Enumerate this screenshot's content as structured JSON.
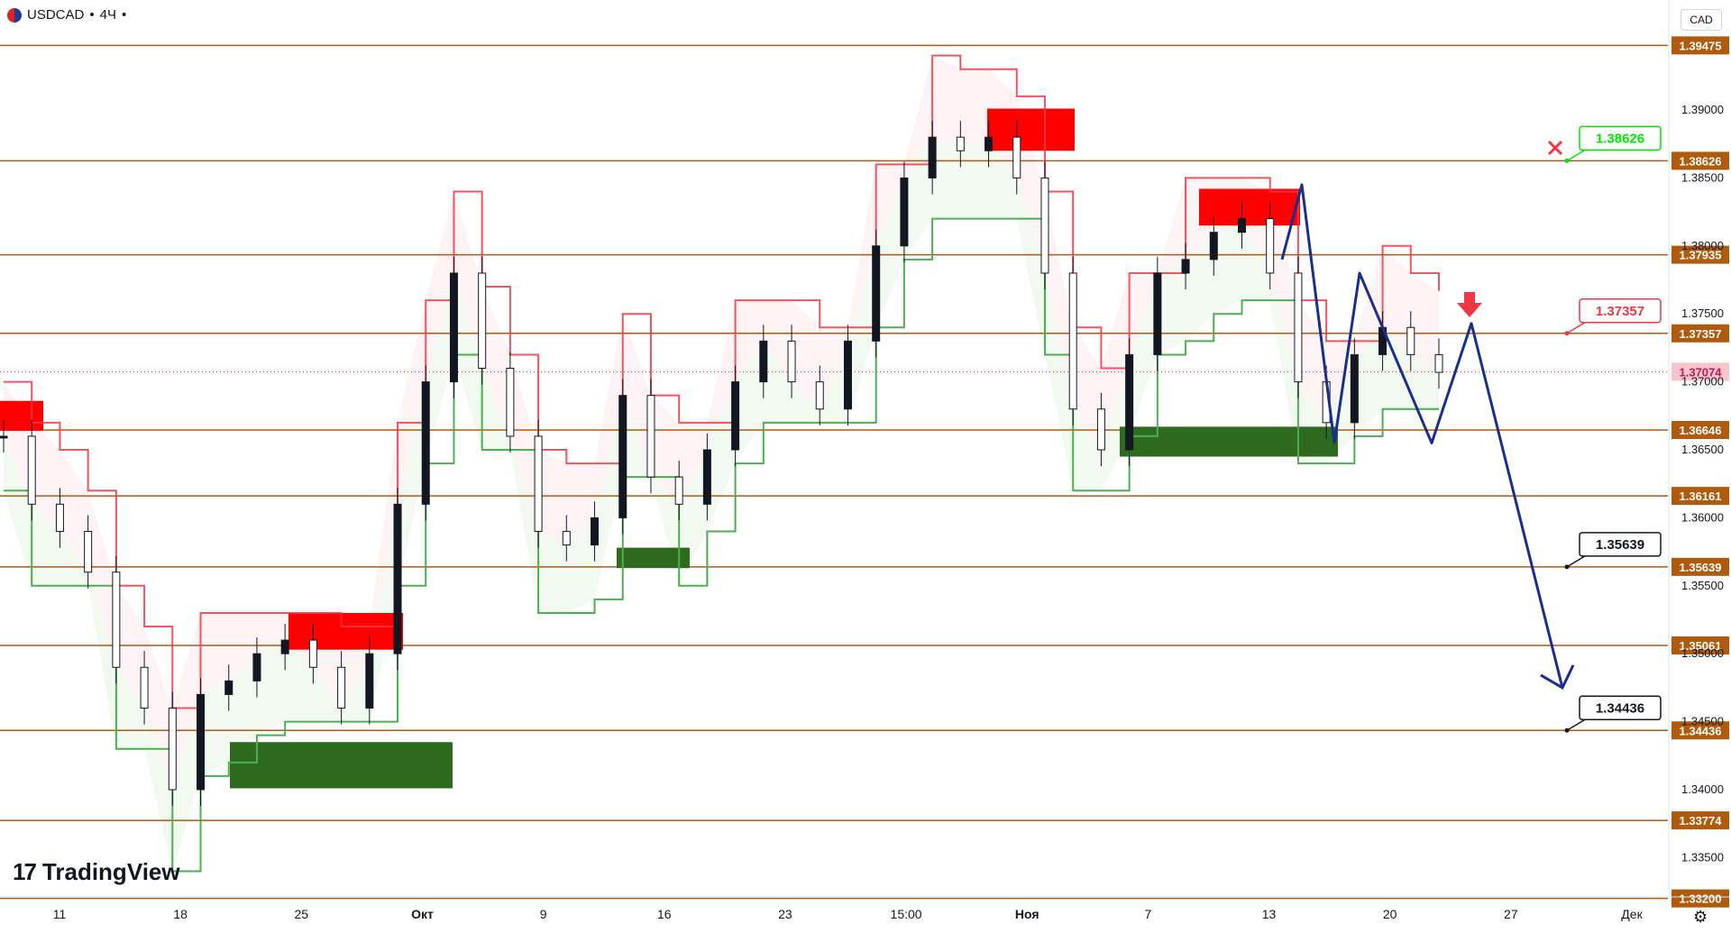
{
  "header": {
    "symbol": "USDCAD",
    "interval": "4Ч",
    "separator": "•"
  },
  "currency_label": "CAD",
  "branding": {
    "logo_text": "TradingView"
  },
  "icons": {
    "flag": "us-ca-flag-icon",
    "settings": "gear-icon",
    "cancel": "x-mark-icon",
    "sell": "arrow-down-icon"
  },
  "colors": {
    "level_line": "#b05a0e",
    "supply_zone": "#ff0000",
    "demand_zone": "#2e6b1f",
    "support_line": "#4caf50",
    "resistance_line": "#f23645",
    "projection": "#1a2f8c",
    "target_green": "#00e600",
    "target_red": "#f23645"
  },
  "chart_data": {
    "type": "line",
    "title": "",
    "ylim": [
      1.3315,
      1.3975
    ],
    "y_ticks": [
      "1.39000",
      "1.38500",
      "1.38000",
      "1.37500",
      "1.37000",
      "1.36500",
      "1.36000",
      "1.35500",
      "1.35000",
      "1.34500",
      "1.34000",
      "1.33500"
    ],
    "x_ticks": [
      "11",
      "18",
      "25",
      "Окт",
      "9",
      "16",
      "23",
      "15:00",
      "Ноя",
      "7",
      "13",
      "20",
      "27",
      "Дек"
    ],
    "levels": [
      "1.39475",
      "1.38626",
      "1.37935",
      "1.37357",
      "1.36646",
      "1.36161",
      "1.35639",
      "1.35061",
      "1.34436",
      "1.33774",
      "1.33200"
    ],
    "current_price": "1.37074",
    "targets": [
      {
        "value": "1.38626",
        "style": "green"
      },
      {
        "value": "1.37357",
        "style": "red"
      },
      {
        "value": "1.35639",
        "style": "black"
      },
      {
        "value": "1.34436",
        "style": "black"
      }
    ],
    "price_path": [
      [
        0,
        1.366
      ],
      [
        1,
        1.361
      ],
      [
        2,
        1.359
      ],
      [
        3,
        1.356
      ],
      [
        4,
        1.349
      ],
      [
        5,
        1.346
      ],
      [
        6,
        1.34
      ],
      [
        7,
        1.347
      ],
      [
        8,
        1.348
      ],
      [
        9,
        1.35
      ],
      [
        10,
        1.351
      ],
      [
        11,
        1.349
      ],
      [
        12,
        1.346
      ],
      [
        13,
        1.35
      ],
      [
        14,
        1.361
      ],
      [
        15,
        1.37
      ],
      [
        16,
        1.378
      ],
      [
        17,
        1.371
      ],
      [
        18,
        1.366
      ],
      [
        19,
        1.359
      ],
      [
        20,
        1.358
      ],
      [
        21,
        1.36
      ],
      [
        22,
        1.369
      ],
      [
        23,
        1.363
      ],
      [
        24,
        1.361
      ],
      [
        25,
        1.365
      ],
      [
        26,
        1.37
      ],
      [
        27,
        1.373
      ],
      [
        28,
        1.37
      ],
      [
        29,
        1.368
      ],
      [
        30,
        1.373
      ],
      [
        31,
        1.38
      ],
      [
        32,
        1.385
      ],
      [
        33,
        1.388
      ],
      [
        34,
        1.387
      ],
      [
        35,
        1.388
      ],
      [
        36,
        1.385
      ],
      [
        37,
        1.378
      ],
      [
        38,
        1.368
      ],
      [
        39,
        1.365
      ],
      [
        40,
        1.372
      ],
      [
        41,
        1.378
      ],
      [
        42,
        1.379
      ],
      [
        43,
        1.381
      ],
      [
        44,
        1.382
      ],
      [
        45,
        1.378
      ],
      [
        46,
        1.37
      ],
      [
        47,
        1.367
      ],
      [
        48,
        1.372
      ],
      [
        49,
        1.374
      ],
      [
        50,
        1.372
      ],
      [
        51,
        1.3707
      ]
    ]
  }
}
